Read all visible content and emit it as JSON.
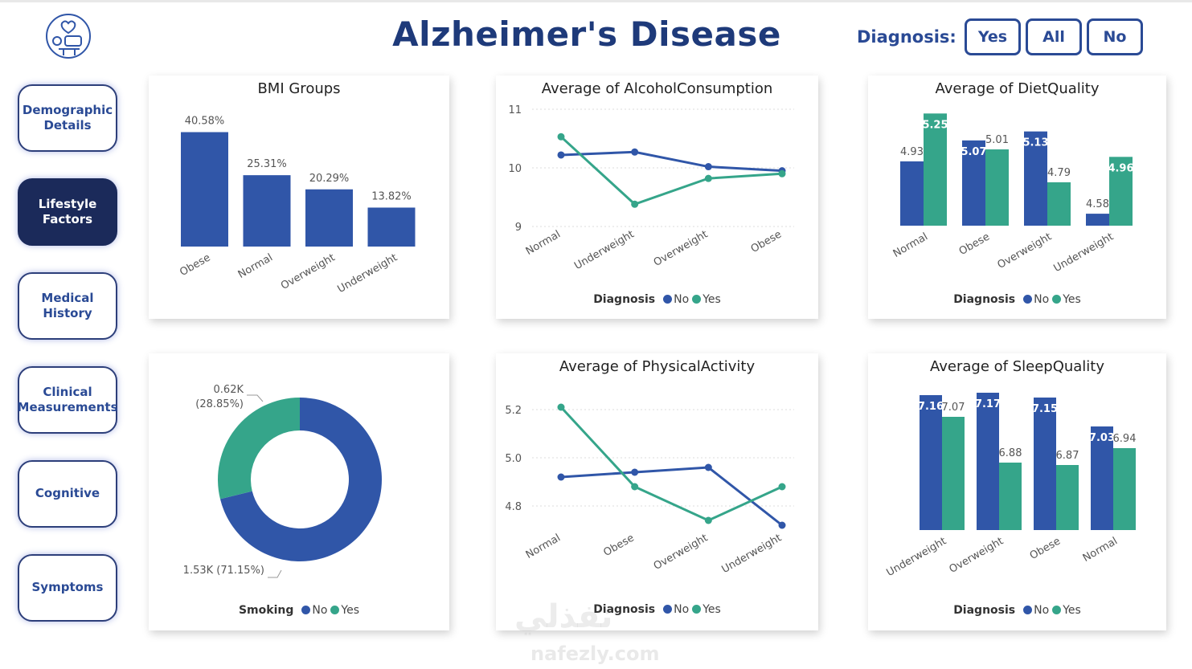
{
  "header": {
    "title": "Alzheimer's Disease",
    "diagnosis_label": "Diagnosis:",
    "diagnosis_buttons": [
      "Yes",
      "All",
      "No"
    ]
  },
  "nav": {
    "items": [
      {
        "label": "Demographic Details",
        "active": false
      },
      {
        "label": "Lifestyle Factors",
        "active": true
      },
      {
        "label": "Medical History",
        "active": false
      },
      {
        "label": "Clinical Measurements",
        "active": false
      },
      {
        "label": "Cognitive",
        "active": false
      },
      {
        "label": "Symptoms",
        "active": false
      }
    ]
  },
  "colors": {
    "no": "#3056a8",
    "yes": "#35a58a",
    "title": "#1e3a7a",
    "nav_active": "#1b2a5a"
  },
  "watermark": {
    "arabic": "نفذلي",
    "latin": "nafezly.com"
  },
  "chart_data": [
    {
      "id": "bmi",
      "type": "bar",
      "title": "BMI Groups",
      "categories": [
        "Obese",
        "Normal",
        "Overweight",
        "Underweight"
      ],
      "values": [
        40.58,
        25.31,
        20.29,
        13.82
      ],
      "data_labels": [
        "40.58%",
        "25.31%",
        "20.29%",
        "13.82%"
      ],
      "ylim": [
        0,
        45
      ]
    },
    {
      "id": "alcohol",
      "type": "line",
      "title": "Average of AlcoholConsumption",
      "categories": [
        "Normal",
        "Underweight",
        "Overweight",
        "Obese"
      ],
      "series": [
        {
          "name": "No",
          "values": [
            10.22,
            10.27,
            10.02,
            9.95
          ]
        },
        {
          "name": "Yes",
          "values": [
            10.53,
            9.38,
            9.82,
            9.9
          ]
        }
      ],
      "yticks": [
        9,
        10,
        11
      ],
      "ylim": [
        9,
        11
      ],
      "legend_title": "Diagnosis"
    },
    {
      "id": "diet",
      "type": "bar",
      "title": "Average of DietQuality",
      "categories": [
        "Normal",
        "Obese",
        "Overweight",
        "Underweight"
      ],
      "series": [
        {
          "name": "No",
          "values": [
            4.93,
            5.07,
            5.13,
            4.58
          ]
        },
        {
          "name": "Yes",
          "values": [
            5.25,
            5.01,
            4.79,
            4.96
          ]
        }
      ],
      "data_labels": {
        "No": [
          "4.93",
          "5.07",
          "5.13",
          "4.58"
        ],
        "Yes": [
          "5.25",
          "5.01",
          "4.79",
          "4.96"
        ]
      },
      "ylim": [
        4.5,
        5.3
      ],
      "legend_title": "Diagnosis"
    },
    {
      "id": "smoking",
      "type": "pie",
      "title": "",
      "slices": [
        {
          "name": "No",
          "value": 1.53,
          "label": "1.53K (71.15%)",
          "percent": 71.15
        },
        {
          "name": "Yes",
          "value": 0.62,
          "label": "0.62K",
          "label2": "(28.85%)",
          "percent": 28.85
        }
      ],
      "legend_title": "Smoking"
    },
    {
      "id": "physical",
      "type": "line",
      "title": "Average of PhysicalActivity",
      "categories": [
        "Normal",
        "Obese",
        "Overweight",
        "Underweight"
      ],
      "series": [
        {
          "name": "No",
          "values": [
            4.92,
            4.94,
            4.96,
            4.72
          ]
        },
        {
          "name": "Yes",
          "values": [
            5.21,
            4.88,
            4.74,
            4.88
          ]
        }
      ],
      "yticks": [
        "4.8",
        "5.0",
        "5.2"
      ],
      "ylim": [
        4.7,
        5.3
      ],
      "legend_title": "Diagnosis"
    },
    {
      "id": "sleep",
      "type": "bar",
      "title": "Average of SleepQuality",
      "categories": [
        "Underweight",
        "Overweight",
        "Obese",
        "Normal"
      ],
      "series": [
        {
          "name": "No",
          "values": [
            7.16,
            7.17,
            7.15,
            7.03
          ]
        },
        {
          "name": "Yes",
          "values": [
            7.07,
            6.88,
            6.87,
            6.94
          ]
        }
      ],
      "data_labels": {
        "No": [
          "7.16",
          "7.17",
          "7.15",
          "7.03"
        ],
        "Yes": [
          "7.07",
          "6.88",
          "6.87",
          "6.94"
        ]
      },
      "ylim": [
        6.6,
        7.2
      ],
      "legend_title": "Diagnosis"
    }
  ]
}
